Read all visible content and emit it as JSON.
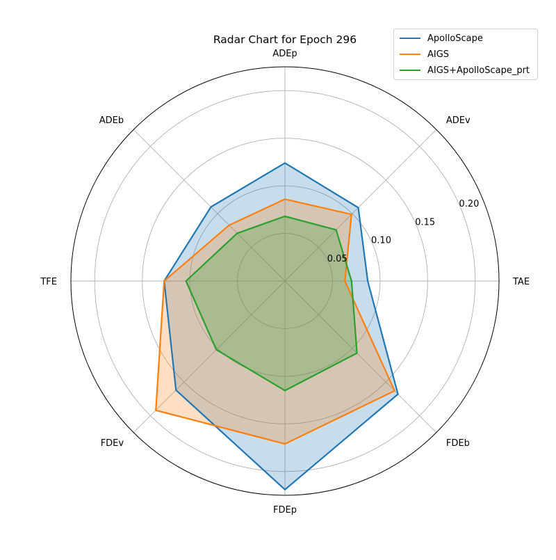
{
  "chart_data": {
    "type": "radar",
    "title": "Radar Chart for Epoch 296",
    "axes": [
      "ADEp",
      "ADEv",
      "TAE",
      "FDEb",
      "FDEp",
      "FDEv",
      "TFE",
      "ADEb"
    ],
    "radial_ticks": [
      "0.05",
      "0.10",
      "0.15",
      "0.20"
    ],
    "radial_tick_values": [
      0.05,
      0.1,
      0.15,
      0.2
    ],
    "rlim": [
      0,
      0.225
    ],
    "grid": true,
    "legend_placement": "top-right",
    "series": [
      {
        "name": "ApolloScape",
        "color": "#1f77b4",
        "values": [
          0.124,
          0.109,
          0.087,
          0.168,
          0.219,
          0.162,
          0.127,
          0.11
        ]
      },
      {
        "name": "AIGS",
        "color": "#ff7f0e",
        "values": [
          0.086,
          0.099,
          0.063,
          0.163,
          0.171,
          0.192,
          0.127,
          0.083
        ]
      },
      {
        "name": "AIGS+ApolloScape_prt",
        "color": "#2ca02c",
        "values": [
          0.068,
          0.076,
          0.07,
          0.107,
          0.115,
          0.102,
          0.104,
          0.071
        ]
      }
    ]
  }
}
